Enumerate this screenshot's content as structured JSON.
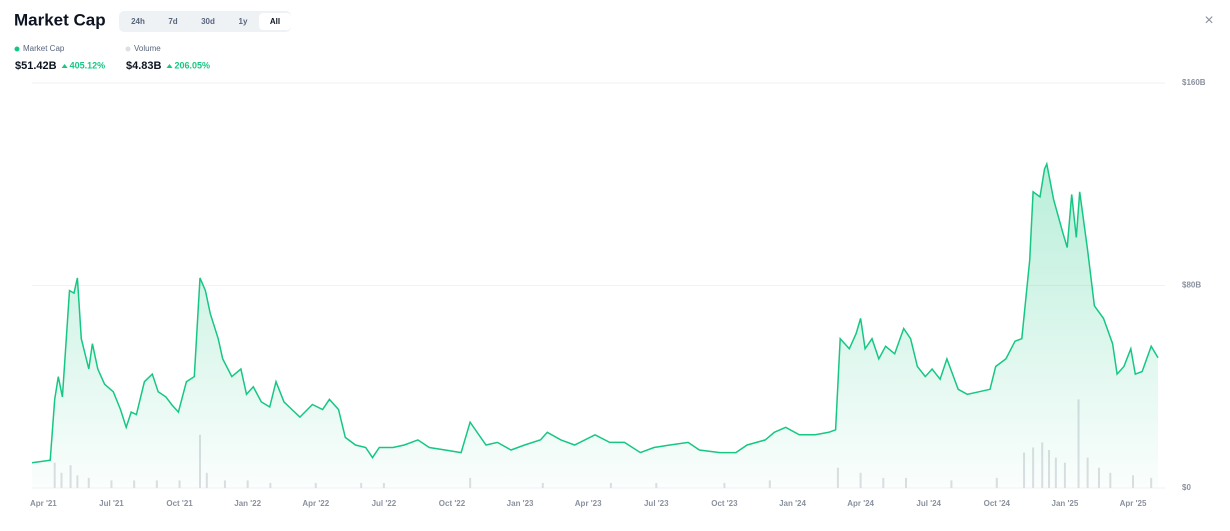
{
  "header": {
    "title": "Market Cap",
    "tabs": [
      "24h",
      "7d",
      "30d",
      "1y",
      "All"
    ],
    "active_tab": 4,
    "stats": [
      {
        "value": "$51.42B",
        "change": "405.12%"
      },
      {
        "value": "$4.83B",
        "change": "206.05%"
      }
    ]
  },
  "chart_data": {
    "type": "line",
    "xlim": [
      -0.5,
      49.1
    ],
    "xticks": [
      {
        "value": 0,
        "label": "Apr '21"
      },
      {
        "value": 3,
        "label": "Jul '21"
      },
      {
        "value": 6,
        "label": "Oct '21"
      },
      {
        "value": 9,
        "label": "Jan '22"
      },
      {
        "value": 12,
        "label": "Apr '22"
      },
      {
        "value": 15,
        "label": "Jul '22"
      },
      {
        "value": 18,
        "label": "Oct '22"
      },
      {
        "value": 21,
        "label": "Jan '23"
      },
      {
        "value": 24,
        "label": "Apr '23"
      },
      {
        "value": 27,
        "label": "Jul '23"
      },
      {
        "value": 30,
        "label": "Oct '23"
      },
      {
        "value": 33,
        "label": "Jan '24"
      },
      {
        "value": 36,
        "label": "Apr '24"
      },
      {
        "value": 39,
        "label": "Jul '24"
      },
      {
        "value": 42,
        "label": "Oct '24"
      },
      {
        "value": 45,
        "label": "Jan '25"
      },
      {
        "value": 48,
        "label": "Apr '25"
      }
    ],
    "ylim": [
      0,
      160
    ],
    "yticks": [
      {
        "value": 0,
        "label": "$0"
      },
      {
        "value": 80,
        "label": "$80B"
      },
      {
        "value": 160,
        "label": "$160B"
      }
    ],
    "grid": true,
    "series": [
      {
        "name": "Market Cap",
        "color": "#16c784",
        "x": [
          -0.5,
          0.3,
          0.5,
          0.66,
          0.84,
          1.15,
          1.35,
          1.5,
          1.67,
          2.0,
          2.16,
          2.4,
          2.7,
          3.08,
          3.4,
          3.65,
          3.87,
          4.1,
          4.45,
          4.8,
          5.06,
          5.4,
          5.65,
          5.95,
          6.3,
          6.65,
          6.9,
          7.14,
          7.35,
          7.7,
          7.9,
          8.3,
          8.7,
          8.95,
          9.25,
          9.6,
          9.97,
          10.25,
          10.6,
          10.95,
          11.3,
          11.85,
          12.3,
          12.6,
          13.0,
          13.3,
          13.75,
          14.2,
          14.5,
          14.8,
          15.4,
          15.9,
          16.5,
          17.0,
          17.7,
          18.4,
          18.8,
          19.5,
          20.0,
          20.6,
          21.2,
          21.9,
          22.2,
          22.8,
          23.4,
          24.3,
          24.95,
          25.6,
          26.3,
          26.9,
          27.6,
          28.4,
          28.9,
          29.8,
          30.5,
          31.0,
          31.8,
          32.2,
          32.7,
          33.3,
          34.0,
          34.6,
          34.9,
          35.1,
          35.5,
          35.8,
          36.0,
          36.2,
          36.5,
          36.8,
          37.1,
          37.5,
          37.9,
          38.2,
          38.5,
          38.85,
          39.15,
          39.5,
          39.8,
          40.3,
          40.7,
          41.2,
          41.7,
          41.95,
          42.4,
          42.8,
          43.1,
          43.45,
          43.6,
          43.9,
          44.1,
          44.2,
          44.5,
          44.9,
          45.1,
          45.3,
          45.5,
          45.65,
          46.0,
          46.3,
          46.7,
          47.1,
          47.3,
          47.6,
          47.9,
          48.1,
          48.4,
          48.8,
          49.1
        ],
        "values": [
          10,
          11,
          35,
          44,
          36,
          78,
          77,
          83,
          59,
          47,
          57,
          47,
          41,
          38,
          31,
          24,
          30,
          29,
          42,
          45,
          38,
          36,
          33,
          30,
          42,
          44,
          83,
          78,
          69,
          59,
          51,
          44,
          47,
          37,
          40,
          34,
          32,
          42,
          34,
          31,
          28,
          33,
          31,
          35,
          31,
          20,
          17,
          16,
          12,
          16,
          16,
          17,
          19,
          16,
          15,
          14,
          26,
          17,
          18,
          15,
          17,
          19,
          22,
          19,
          17,
          21,
          18,
          18,
          14,
          16,
          17,
          18,
          15,
          14,
          14,
          17,
          19,
          22,
          24,
          21,
          21,
          22,
          23,
          59,
          55,
          61,
          67,
          55,
          59,
          51,
          56,
          53,
          63,
          59,
          48,
          44,
          47,
          43,
          51,
          39,
          37,
          38,
          39,
          48,
          51,
          58,
          59,
          90,
          117,
          115,
          126,
          128,
          114,
          101,
          95,
          116,
          99,
          117,
          94,
          72,
          67,
          57,
          45,
          48,
          55,
          45,
          46,
          56,
          51.42
        ]
      },
      {
        "name": "Volume",
        "color": "#dcdfe3",
        "x": [
          0.5,
          0.8,
          1.2,
          1.5,
          2,
          3,
          4,
          5,
          6,
          6.9,
          7.2,
          8,
          9,
          10,
          12,
          14,
          15,
          18.8,
          22,
          25,
          27,
          30,
          32,
          35,
          36,
          37,
          38,
          40,
          42,
          43.2,
          43.6,
          44,
          44.3,
          44.6,
          45,
          45.6,
          46,
          46.5,
          47,
          48,
          48.8
        ],
        "values": [
          10,
          6,
          9,
          5,
          4,
          3,
          3,
          3,
          3,
          21,
          6,
          3,
          3,
          2,
          2,
          2,
          2,
          4,
          2,
          2,
          2,
          2,
          3,
          8,
          6,
          4,
          4,
          3,
          4,
          14,
          16,
          18,
          15,
          12,
          10,
          35,
          12,
          8,
          6,
          5,
          4
        ]
      }
    ]
  }
}
